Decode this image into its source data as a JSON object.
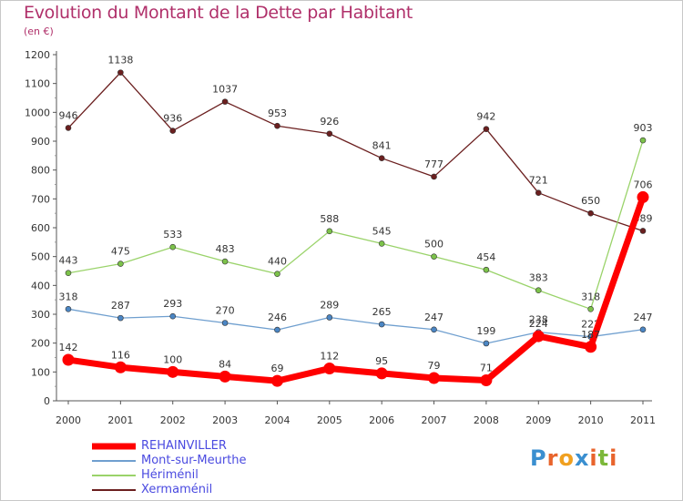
{
  "title": "Evolution du Montant de la Dette par Habitant",
  "subtitle": "(en €)",
  "logo": {
    "text": "Proxiti",
    "colors": [
      "#3a8fd0",
      "#e8642c",
      "#f0a020",
      "#3a8fd0",
      "#e8642c",
      "#7cb83a",
      "#e8642c"
    ]
  },
  "chart_data": {
    "type": "line",
    "x": [
      "2000",
      "2001",
      "2002",
      "2003",
      "2004",
      "2005",
      "2006",
      "2007",
      "2008",
      "2009",
      "2010",
      "2011"
    ],
    "yticks": [
      0,
      100,
      200,
      300,
      400,
      500,
      600,
      700,
      800,
      900,
      1000,
      1100,
      1200
    ],
    "ylim": [
      0,
      1200
    ],
    "grid": false,
    "legend_position": "bottom-left",
    "series": [
      {
        "name": "Xermaménil",
        "color": "#6b1f1f",
        "width": 1.3,
        "point_fill": "#6b1f1f",
        "values": [
          946,
          1138,
          936,
          1037,
          953,
          926,
          841,
          777,
          942,
          721,
          650,
          589
        ]
      },
      {
        "name": "Hériménil",
        "color": "#9ad36a",
        "width": 1.3,
        "point_fill": "#7cc24a",
        "values": [
          443,
          475,
          533,
          483,
          440,
          588,
          545,
          500,
          454,
          383,
          318,
          903
        ]
      },
      {
        "name": "Mont-sur-Meurthe",
        "color": "#6f9fcf",
        "width": 1.3,
        "point_fill": "#4b86c4",
        "values": [
          318,
          287,
          293,
          270,
          246,
          289,
          265,
          247,
          199,
          238,
          222,
          247
        ]
      },
      {
        "name": "REHAINVILLER",
        "color": "#ff0000",
        "width": 7,
        "point_fill": "#ff0000",
        "values": [
          142,
          116,
          100,
          84,
          69,
          112,
          95,
          79,
          71,
          224,
          187,
          706
        ]
      }
    ]
  },
  "legend": [
    {
      "label": "REHAINVILLER",
      "color": "#ff0000",
      "thick": true
    },
    {
      "label": "Mont-sur-Meurthe",
      "color": "#6f9fcf",
      "thick": false
    },
    {
      "label": "Hériménil",
      "color": "#9ad36a",
      "thick": false
    },
    {
      "label": "Xermaménil",
      "color": "#6b1f1f",
      "thick": false
    }
  ],
  "legend_text_color": "#4a4ae0"
}
